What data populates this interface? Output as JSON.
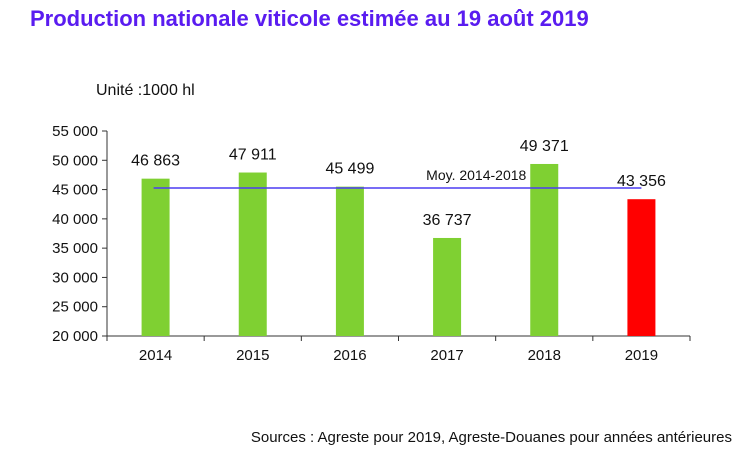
{
  "title": "Production nationale viticole estimée au 19 août 2019",
  "unit": "Unité :1000 hl",
  "sources": "Sources : Agreste pour 2019, Agreste-Douanes pour années antérieures",
  "colors": {
    "title": "#5a1cf0",
    "bar": "#7fd032",
    "highlight": "#ff0000",
    "average_line": "#4b3cf2"
  },
  "chart_data": {
    "type": "bar",
    "title": "Production nationale viticole estimée au 19 août 2019",
    "xlabel": "",
    "ylabel": "",
    "ylim": [
      20000,
      55000
    ],
    "yticks": [
      20000,
      25000,
      30000,
      35000,
      40000,
      45000,
      50000,
      55000
    ],
    "ytick_labels": [
      "20 000",
      "25 000",
      "30 000",
      "35 000",
      "40 000",
      "45 000",
      "50 000",
      "55 000"
    ],
    "categories": [
      "2014",
      "2015",
      "2016",
      "2017",
      "2018",
      "2019"
    ],
    "values": [
      46863,
      47911,
      45499,
      36737,
      49371,
      43356
    ],
    "value_labels": [
      "46 863",
      "47 911",
      "45 499",
      "36 737",
      "49 371",
      "43 356"
    ],
    "highlight_category": "2019",
    "reference_line": {
      "label": "Moy. 2014-2018",
      "value": 45276
    },
    "grid": false,
    "legend": "none"
  }
}
